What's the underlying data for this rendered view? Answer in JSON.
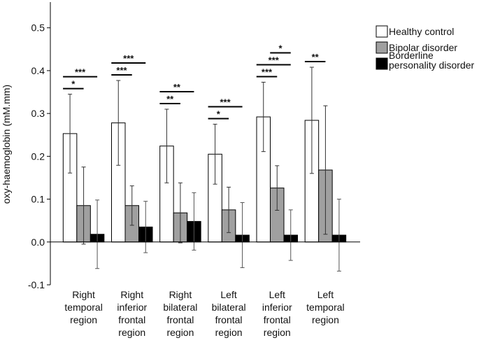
{
  "chart_data": {
    "type": "bar",
    "y_label": "oxy-haemoglobin (mM.mm)",
    "categories": [
      "Right temporal region",
      "Right inferior frontal region",
      "Right bilateral frontal region",
      "Left bilateral frontal region",
      "Left inferior frontal region",
      "Left temporal region"
    ],
    "series": [
      {
        "name": "Healthy control",
        "color": "#ffffff",
        "values": [
          0.253,
          0.278,
          0.224,
          0.205,
          0.292,
          0.284
        ],
        "errors": [
          0.092,
          0.099,
          0.086,
          0.07,
          0.081,
          0.124
        ]
      },
      {
        "name": "Bipolar disorder",
        "color": "#a0a0a0",
        "values": [
          0.085,
          0.085,
          0.068,
          0.075,
          0.126,
          0.168
        ],
        "errors": [
          0.09,
          0.046,
          0.07,
          0.053,
          0.052,
          0.15
        ]
      },
      {
        "name": "Borderline personality disorder",
        "color": "#000000",
        "values": [
          0.018,
          0.035,
          0.048,
          0.016,
          0.016,
          0.016
        ],
        "errors": [
          0.08,
          0.06,
          0.067,
          0.076,
          0.059,
          0.084
        ]
      }
    ],
    "ylim": [
      -0.1,
      0.56
    ],
    "yticks": [
      -0.1,
      {
        "value": 0,
        "label": "0.0"
      },
      0.1,
      0.2,
      0.3,
      0.4,
      0.5
    ],
    "annotations": [
      {
        "category": "Right temporal region",
        "from": "Healthy control",
        "to": "Bipolar disorder",
        "text": "*"
      },
      {
        "category": "Right temporal region",
        "from": "Healthy control",
        "to": "Borderline personality disorder",
        "text": "***"
      },
      {
        "category": "Right inferior frontal region",
        "from": "Healthy control",
        "to": "Bipolar disorder",
        "text": "***"
      },
      {
        "category": "Right inferior frontal region",
        "from": "Healthy control",
        "to": "Borderline personality disorder",
        "text": "***"
      },
      {
        "category": "Right bilateral frontal region",
        "from": "Healthy control",
        "to": "Bipolar disorder",
        "text": "**"
      },
      {
        "category": "Right bilateral frontal region",
        "from": "Healthy control",
        "to": "Borderline personality disorder",
        "text": "**"
      },
      {
        "category": "Left bilateral frontal region",
        "from": "Healthy control",
        "to": "Bipolar disorder",
        "text": "*"
      },
      {
        "category": "Left bilateral frontal region",
        "from": "Healthy control",
        "to": "Borderline personality disorder",
        "text": "***"
      },
      {
        "category": "Left inferior frontal region",
        "from": "Healthy control",
        "to": "Bipolar disorder",
        "text": "***"
      },
      {
        "category": "Left inferior frontal region",
        "from": "Healthy control",
        "to": "Borderline personality disorder",
        "text": "***"
      },
      {
        "category": "Left inferior frontal region",
        "from": "Bipolar disorder",
        "to": "Borderline personality disorder",
        "text": "*"
      },
      {
        "category": "Left temporal region",
        "from": "Healthy control",
        "to": "Bipolar disorder",
        "text": "**"
      }
    ],
    "legend": "top-right"
  }
}
